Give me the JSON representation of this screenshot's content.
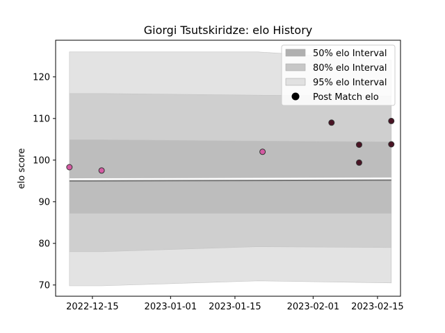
{
  "chart_data": {
    "type": "line",
    "title": "Giorgi Tsutskiridze: elo History",
    "xlabel": "",
    "ylabel": "elo score",
    "x_ticks": [
      "2022-12-15",
      "2023-01-01",
      "2023-01-15",
      "2023-02-01",
      "2023-02-15"
    ],
    "y_ticks": [
      "70",
      "80",
      "90",
      "100",
      "110",
      "120"
    ],
    "xlim": [
      "2022-12-07",
      "2023-02-20"
    ],
    "ylim": [
      67.3,
      128.8
    ],
    "legend": [
      "50% elo Interval",
      "80% elo Interval",
      "95% elo Interval",
      "Post Match elo"
    ],
    "legend_position": "top-right",
    "bands": [
      {
        "name": "95% elo Interval",
        "color": "#e3e3e3",
        "x": [
          "2022-12-10",
          "2022-12-17",
          "2023-01-20",
          "2023-02-18"
        ],
        "upper": [
          126,
          126,
          126,
          124
        ],
        "lower": [
          69.8,
          69.8,
          71.0,
          70.5
        ]
      },
      {
        "name": "80% elo Interval",
        "color": "#cfcfcf",
        "x": [
          "2022-12-10",
          "2022-12-17",
          "2023-01-20",
          "2023-02-18"
        ],
        "upper": [
          116,
          116,
          115.6,
          115.4
        ],
        "lower": [
          78.0,
          78.0,
          79.2,
          79.0
        ]
      },
      {
        "name": "50% elo Interval",
        "color": "#bdbdbd",
        "x": [
          "2022-12-10",
          "2022-12-17",
          "2023-01-20",
          "2023-02-18"
        ],
        "upper": [
          104.9,
          104.9,
          104.6,
          104.4
        ],
        "lower": [
          87.2,
          87.2,
          87.2,
          87.2
        ]
      }
    ],
    "mean_line": {
      "x": [
        "2022-12-10",
        "2023-02-18"
      ],
      "y": [
        95.0,
        95.2
      ]
    },
    "series": [
      {
        "name": "Post Match elo",
        "points": [
          {
            "x": "2022-12-10",
            "y": 98.3,
            "color": "#d35ba2"
          },
          {
            "x": "2022-12-17",
            "y": 97.5,
            "color": "#d35ba2"
          },
          {
            "x": "2023-01-21",
            "y": 102.0,
            "color": "#d35ba2"
          },
          {
            "x": "2023-02-05",
            "y": 109.0,
            "color": "#4a1424"
          },
          {
            "x": "2023-02-11",
            "y": 103.7,
            "color": "#4a1424"
          },
          {
            "x": "2023-02-11",
            "y": 99.4,
            "color": "#4a1424"
          },
          {
            "x": "2023-02-18",
            "y": 109.4,
            "color": "#4a1424"
          },
          {
            "x": "2023-02-18",
            "y": 103.8,
            "color": "#4a1424"
          }
        ]
      }
    ],
    "grid": false
  }
}
